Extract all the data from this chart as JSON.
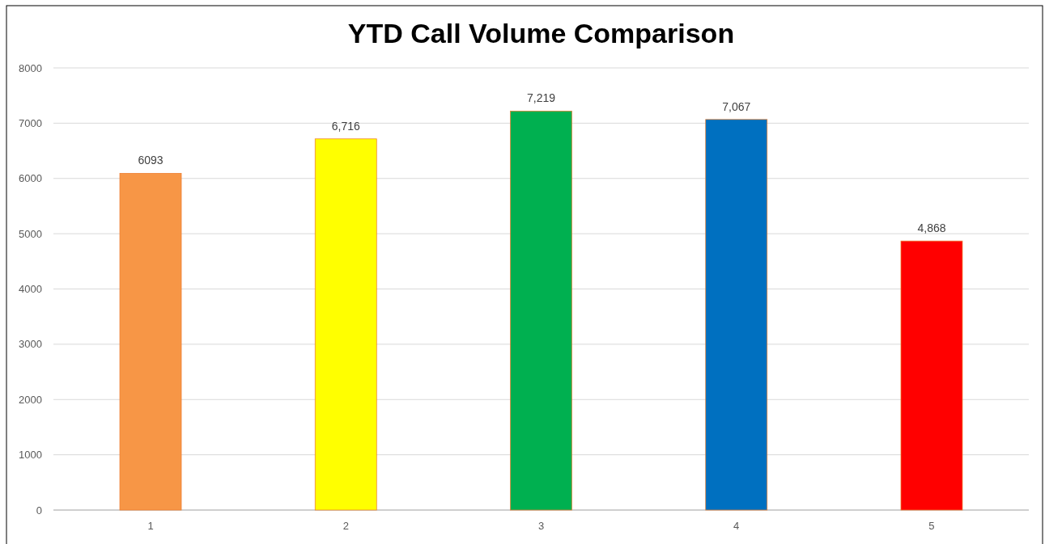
{
  "chart_data": {
    "type": "bar",
    "title": "YTD Call Volume Comparison",
    "categories": [
      "1",
      "2",
      "3",
      "4",
      "5"
    ],
    "values": [
      6093,
      6716,
      7219,
      7067,
      4868
    ],
    "colors": [
      "#f79646",
      "#ffff00",
      "#00b050",
      "#0070c0",
      "#ff0000"
    ],
    "value_labels": [
      "6093",
      "6,716",
      "7,219",
      "7,067",
      "4,868"
    ],
    "ylim": [
      0,
      8000
    ],
    "yticks": [
      0,
      1000,
      2000,
      3000,
      4000,
      5000,
      6000,
      7000,
      8000
    ],
    "grid": "y"
  }
}
